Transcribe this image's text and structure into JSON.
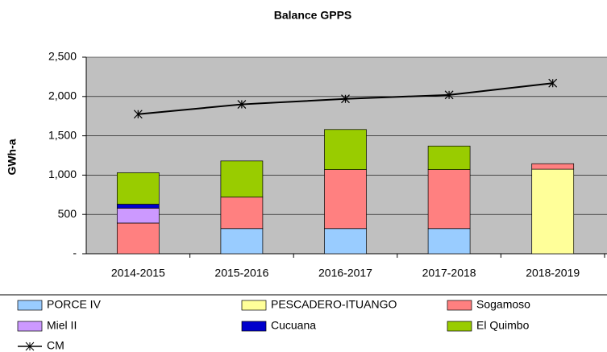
{
  "chart_data": {
    "type": "bar",
    "stacked": true,
    "title": "Balance GPPS",
    "y_label": "GWh-a",
    "categories": [
      "2014-2015",
      "2015-2016",
      "2016-2017",
      "2017-2018",
      "2018-2019"
    ],
    "series": [
      {
        "name": "PORCE IV",
        "color": "#99ccff",
        "values": [
          null,
          320,
          320,
          320,
          null
        ]
      },
      {
        "name": "PESCADERO-ITUANGO",
        "color": "#ffff99",
        "values": [
          null,
          null,
          null,
          null,
          1075
        ]
      },
      {
        "name": "Sogamoso",
        "color": "#ff8080",
        "values": [
          390,
          400,
          750,
          750,
          70
        ]
      },
      {
        "name": "Miel II",
        "color": "#cc99ff",
        "values": [
          190,
          null,
          null,
          null,
          null
        ]
      },
      {
        "name": "Cucuana",
        "color": "#0000cc",
        "values": [
          50,
          null,
          null,
          null,
          null
        ]
      },
      {
        "name": "El Quimbo",
        "color": "#99cc00",
        "values": [
          400,
          460,
          510,
          300,
          null
        ]
      },
      {
        "name": "CM",
        "type": "line",
        "color": "#000000",
        "values": [
          1775,
          1900,
          1970,
          2020,
          2170
        ]
      }
    ],
    "ylim": [
      0,
      2500
    ],
    "yticks": [
      {
        "value": 0,
        "label": "-"
      },
      500,
      {
        "value": 1000,
        "label": "1,000"
      },
      {
        "value": 1500,
        "label": "1,500"
      },
      {
        "value": 2000,
        "label": "2,000"
      },
      {
        "value": 2500,
        "label": "2,500"
      }
    ],
    "grid": true,
    "legend": "bottom"
  }
}
